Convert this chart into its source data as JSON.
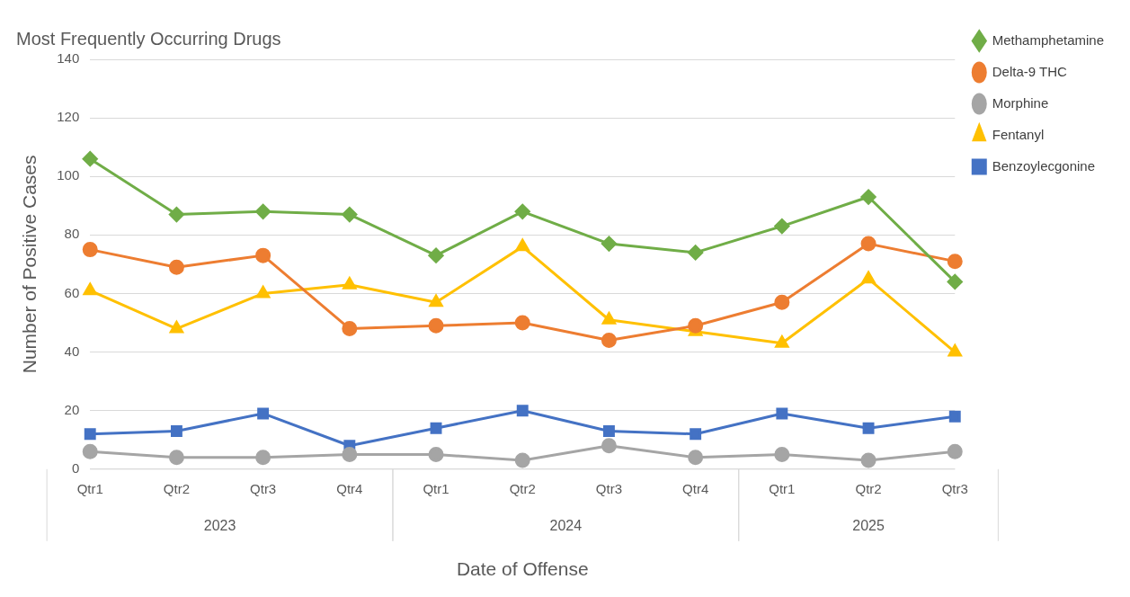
{
  "chart_data": {
    "type": "line",
    "title": "Most Frequently Occurring Drugs",
    "xlabel": "Date of Offense",
    "ylabel": "Number of Positive Cases",
    "categories": [
      "Qtr1",
      "Qtr2",
      "Qtr3",
      "Qtr4",
      "Qtr1",
      "Qtr2",
      "Qtr3",
      "Qtr4",
      "Qtr1",
      "Qtr2",
      "Qtr3"
    ],
    "annotations": [
      "2023",
      "2024",
      "2025"
    ],
    "series": [
      {
        "name": "Methamphetamine",
        "color": "#70ad47",
        "marker": "diamond",
        "values": [
          106,
          87,
          88,
          87,
          73,
          88,
          77,
          74,
          83,
          93,
          64
        ]
      },
      {
        "name": "Delta-9 THC",
        "color": "#ed7d31",
        "marker": "circle",
        "values": [
          75,
          69,
          73,
          48,
          49,
          50,
          44,
          49,
          57,
          77,
          71
        ]
      },
      {
        "name": "Morphine",
        "color": "#a5a5a5",
        "marker": "circle",
        "values": [
          6,
          4,
          4,
          5,
          5,
          3,
          8,
          4,
          5,
          3,
          6
        ]
      },
      {
        "name": "Fentanyl",
        "color": "#ffc000",
        "marker": "triangle",
        "values": [
          61,
          48,
          60,
          63,
          57,
          76,
          51,
          47,
          43,
          65,
          40
        ]
      },
      {
        "name": "Benzoylecgonine",
        "color": "#4472c4",
        "marker": "square",
        "values": [
          12,
          13,
          19,
          8,
          14,
          20,
          13,
          12,
          19,
          14,
          18
        ]
      }
    ],
    "ylim": [
      0,
      140
    ],
    "yticks": [
      0,
      20,
      40,
      60,
      80,
      100,
      120,
      140
    ],
    "grid": "y",
    "legend": "right",
    "line_style": "solid"
  }
}
